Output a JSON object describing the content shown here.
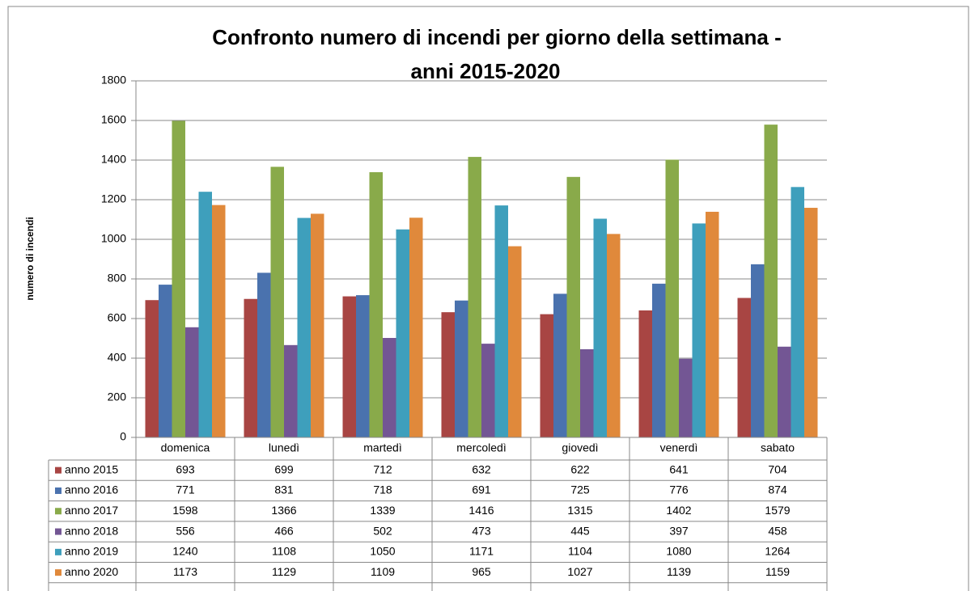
{
  "chart_data": {
    "type": "bar",
    "title": [
      "Confronto numero di incendi per giorno della settimana -",
      "anni 2015-2020"
    ],
    "y_label": "numero di incendi",
    "categories": [
      "domenica",
      "lunedì",
      "martedì",
      "mercoledì",
      "giovedì",
      "venerdì",
      "sabato"
    ],
    "series": [
      {
        "name": "anno 2015",
        "color": "#a84543",
        "values": [
          693,
          699,
          712,
          632,
          622,
          641,
          704
        ]
      },
      {
        "name": "anno 2016",
        "color": "#4a72ae",
        "values": [
          771,
          831,
          718,
          691,
          725,
          776,
          874
        ]
      },
      {
        "name": "anno 2017",
        "color": "#89aa4a",
        "values": [
          1598,
          1366,
          1339,
          1416,
          1315,
          1402,
          1579
        ]
      },
      {
        "name": "anno 2018",
        "color": "#735694",
        "values": [
          556,
          466,
          502,
          473,
          445,
          397,
          458
        ]
      },
      {
        "name": "anno 2019",
        "color": "#3e9fbc",
        "values": [
          1240,
          1108,
          1050,
          1171,
          1104,
          1080,
          1264
        ]
      },
      {
        "name": "anno 2020",
        "color": "#e0893b",
        "values": [
          1173,
          1129,
          1109,
          965,
          1027,
          1139,
          1159
        ]
      }
    ],
    "ylim": [
      0,
      1800
    ],
    "yticks": [
      0,
      200,
      400,
      600,
      800,
      1000,
      1200,
      1400,
      1600,
      1800
    ],
    "grid": true
  }
}
